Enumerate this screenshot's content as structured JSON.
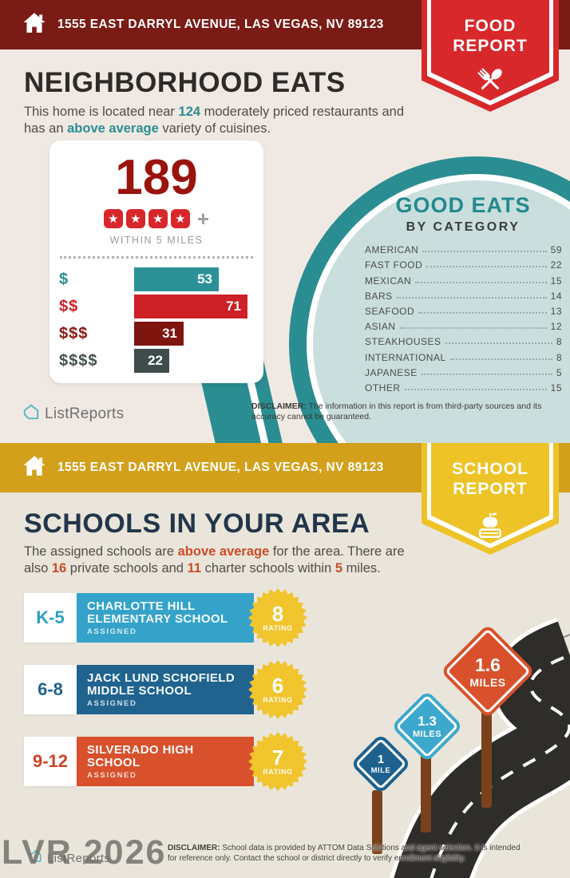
{
  "colors": {
    "food_header": "#7b1b15",
    "food_accent": "#d8282b",
    "teal": "#2a8d91",
    "dark_red_bar": "#7e150f",
    "slate_bar": "#3e4c4c",
    "count_red": "#9a130d",
    "school_header": "#d2a01b",
    "school_accent": "#eec328",
    "navy_title": "#22364b",
    "orange_highlight": "#cc4b28",
    "elementary_blue": "#35a3c9",
    "middle_blue": "#20638f",
    "high_orange": "#d8512c",
    "badge_yellow": "#f0c52e",
    "road": "#2f2d2a",
    "post_brown": "#7a421c",
    "circle_inner": "#c9dedd"
  },
  "icons": {
    "star": "★"
  },
  "chart_data": [
    {
      "type": "bar",
      "orientation": "horizontal",
      "categories": [
        "$",
        "$$",
        "$$$",
        "$$$$"
      ],
      "values": [
        53,
        71,
        31,
        22
      ],
      "colors": [
        "#2b9196",
        "#ce2027",
        "#7e150f",
        "#3e4c4c"
      ]
    },
    {
      "type": "table",
      "title": "GOOD EATS",
      "subtitle": "BY CATEGORY",
      "categories": [
        "AMERICAN",
        "FAST FOOD",
        "MEXICAN",
        "BARS",
        "SEAFOOD",
        "ASIAN",
        "STEAKHOUSES",
        "INTERNATIONAL",
        "JAPANESE",
        "OTHER"
      ],
      "values": [
        59,
        22,
        15,
        14,
        13,
        12,
        8,
        8,
        5,
        15
      ]
    }
  ],
  "food": {
    "address": "1555 EAST DARRYL AVENUE, LAS VEGAS, NV 89123",
    "badge": {
      "line1": "FOOD",
      "line2": "REPORT"
    },
    "title": "NEIGHBORHOOD EATS",
    "intro": {
      "s1": "This home is located near ",
      "h1": "124",
      "s2": " moderately priced restaurants and has an ",
      "h2": "above average",
      "s3": " variety of cuisines."
    },
    "stats": {
      "count": "189",
      "star_count": 4,
      "plus": "+",
      "radius_label": "WITHIN 5 MILES"
    },
    "logo": "ListReports",
    "disclaimer_label": "DISCLAIMER:",
    "disclaimer_text": " The information in this report is from third-party sources and its accuracy cannot be guaranteed."
  },
  "school": {
    "address": "1555 EAST DARRYL AVENUE, LAS VEGAS, NV 89123",
    "badge": {
      "line1": "SCHOOL",
      "line2": "REPORT"
    },
    "title": "SCHOOLS IN YOUR AREA",
    "intro": {
      "s1": "The assigned schools are ",
      "h1": "above average",
      "s2": " for the area. There are also ",
      "h2": "16",
      "s3": " private schools and ",
      "h3": "11",
      "s4": " charter schools within ",
      "h4": "5",
      "s5": " miles."
    },
    "schools": [
      {
        "grades": "K-5",
        "name": "CHARLOTTE HILL ELEMENTARY SCHOOL",
        "assigned_label": "ASSIGNED",
        "rating": "8",
        "rating_label": "RATING"
      },
      {
        "grades": "6-8",
        "name": "JACK LUND SCHOFIELD MIDDLE SCHOOL",
        "assigned_label": "ASSIGNED",
        "rating": "6",
        "rating_label": "RATING"
      },
      {
        "grades": "9-12",
        "name": "SILVERADO HIGH SCHOOL",
        "assigned_label": "ASSIGNED",
        "rating": "7",
        "rating_label": "RATING"
      }
    ],
    "signs": [
      {
        "value": "1",
        "unit": "MILE"
      },
      {
        "value": "1.3",
        "unit": "MILES"
      },
      {
        "value": "1.6",
        "unit": "MILES"
      }
    ],
    "logo": "ListReports",
    "watermark": "LVR 2026",
    "disclaimer_label": "DISCLAIMER:",
    "disclaimer_text": " School data is provided by ATTOM Data Solutions and agent selection. It is intended for reference only. Contact the school or district directly to verify enrollment eligibility."
  }
}
